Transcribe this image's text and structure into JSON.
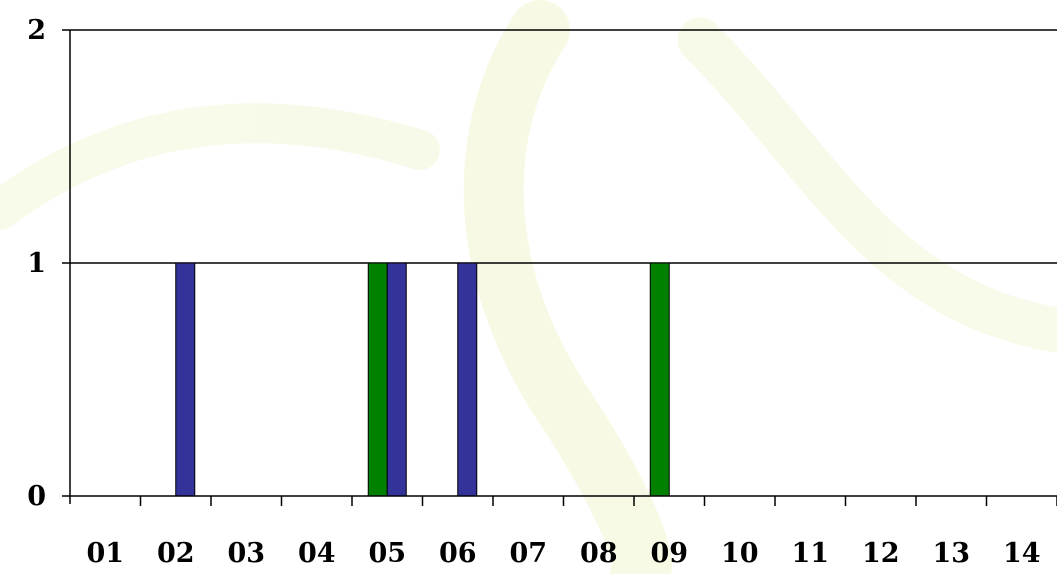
{
  "chart_data": {
    "type": "bar",
    "categories": [
      "01",
      "02",
      "03",
      "04",
      "05",
      "06",
      "07",
      "08",
      "09",
      "10",
      "11",
      "12",
      "13",
      "14"
    ],
    "series": [
      {
        "values": [
          0,
          0,
          0,
          0,
          1,
          0,
          0,
          0,
          1,
          0,
          0,
          0,
          0,
          0
        ],
        "color": "#008000"
      },
      {
        "values": [
          0,
          1,
          0,
          0,
          1,
          1,
          0,
          0,
          0,
          0,
          0,
          0,
          0,
          0
        ],
        "color": "#333399"
      }
    ],
    "ylim": [
      0,
      2
    ],
    "yticks": [
      "0",
      "1",
      "2"
    ],
    "grid": true,
    "title": "",
    "xlabel": "",
    "ylabel": ""
  }
}
